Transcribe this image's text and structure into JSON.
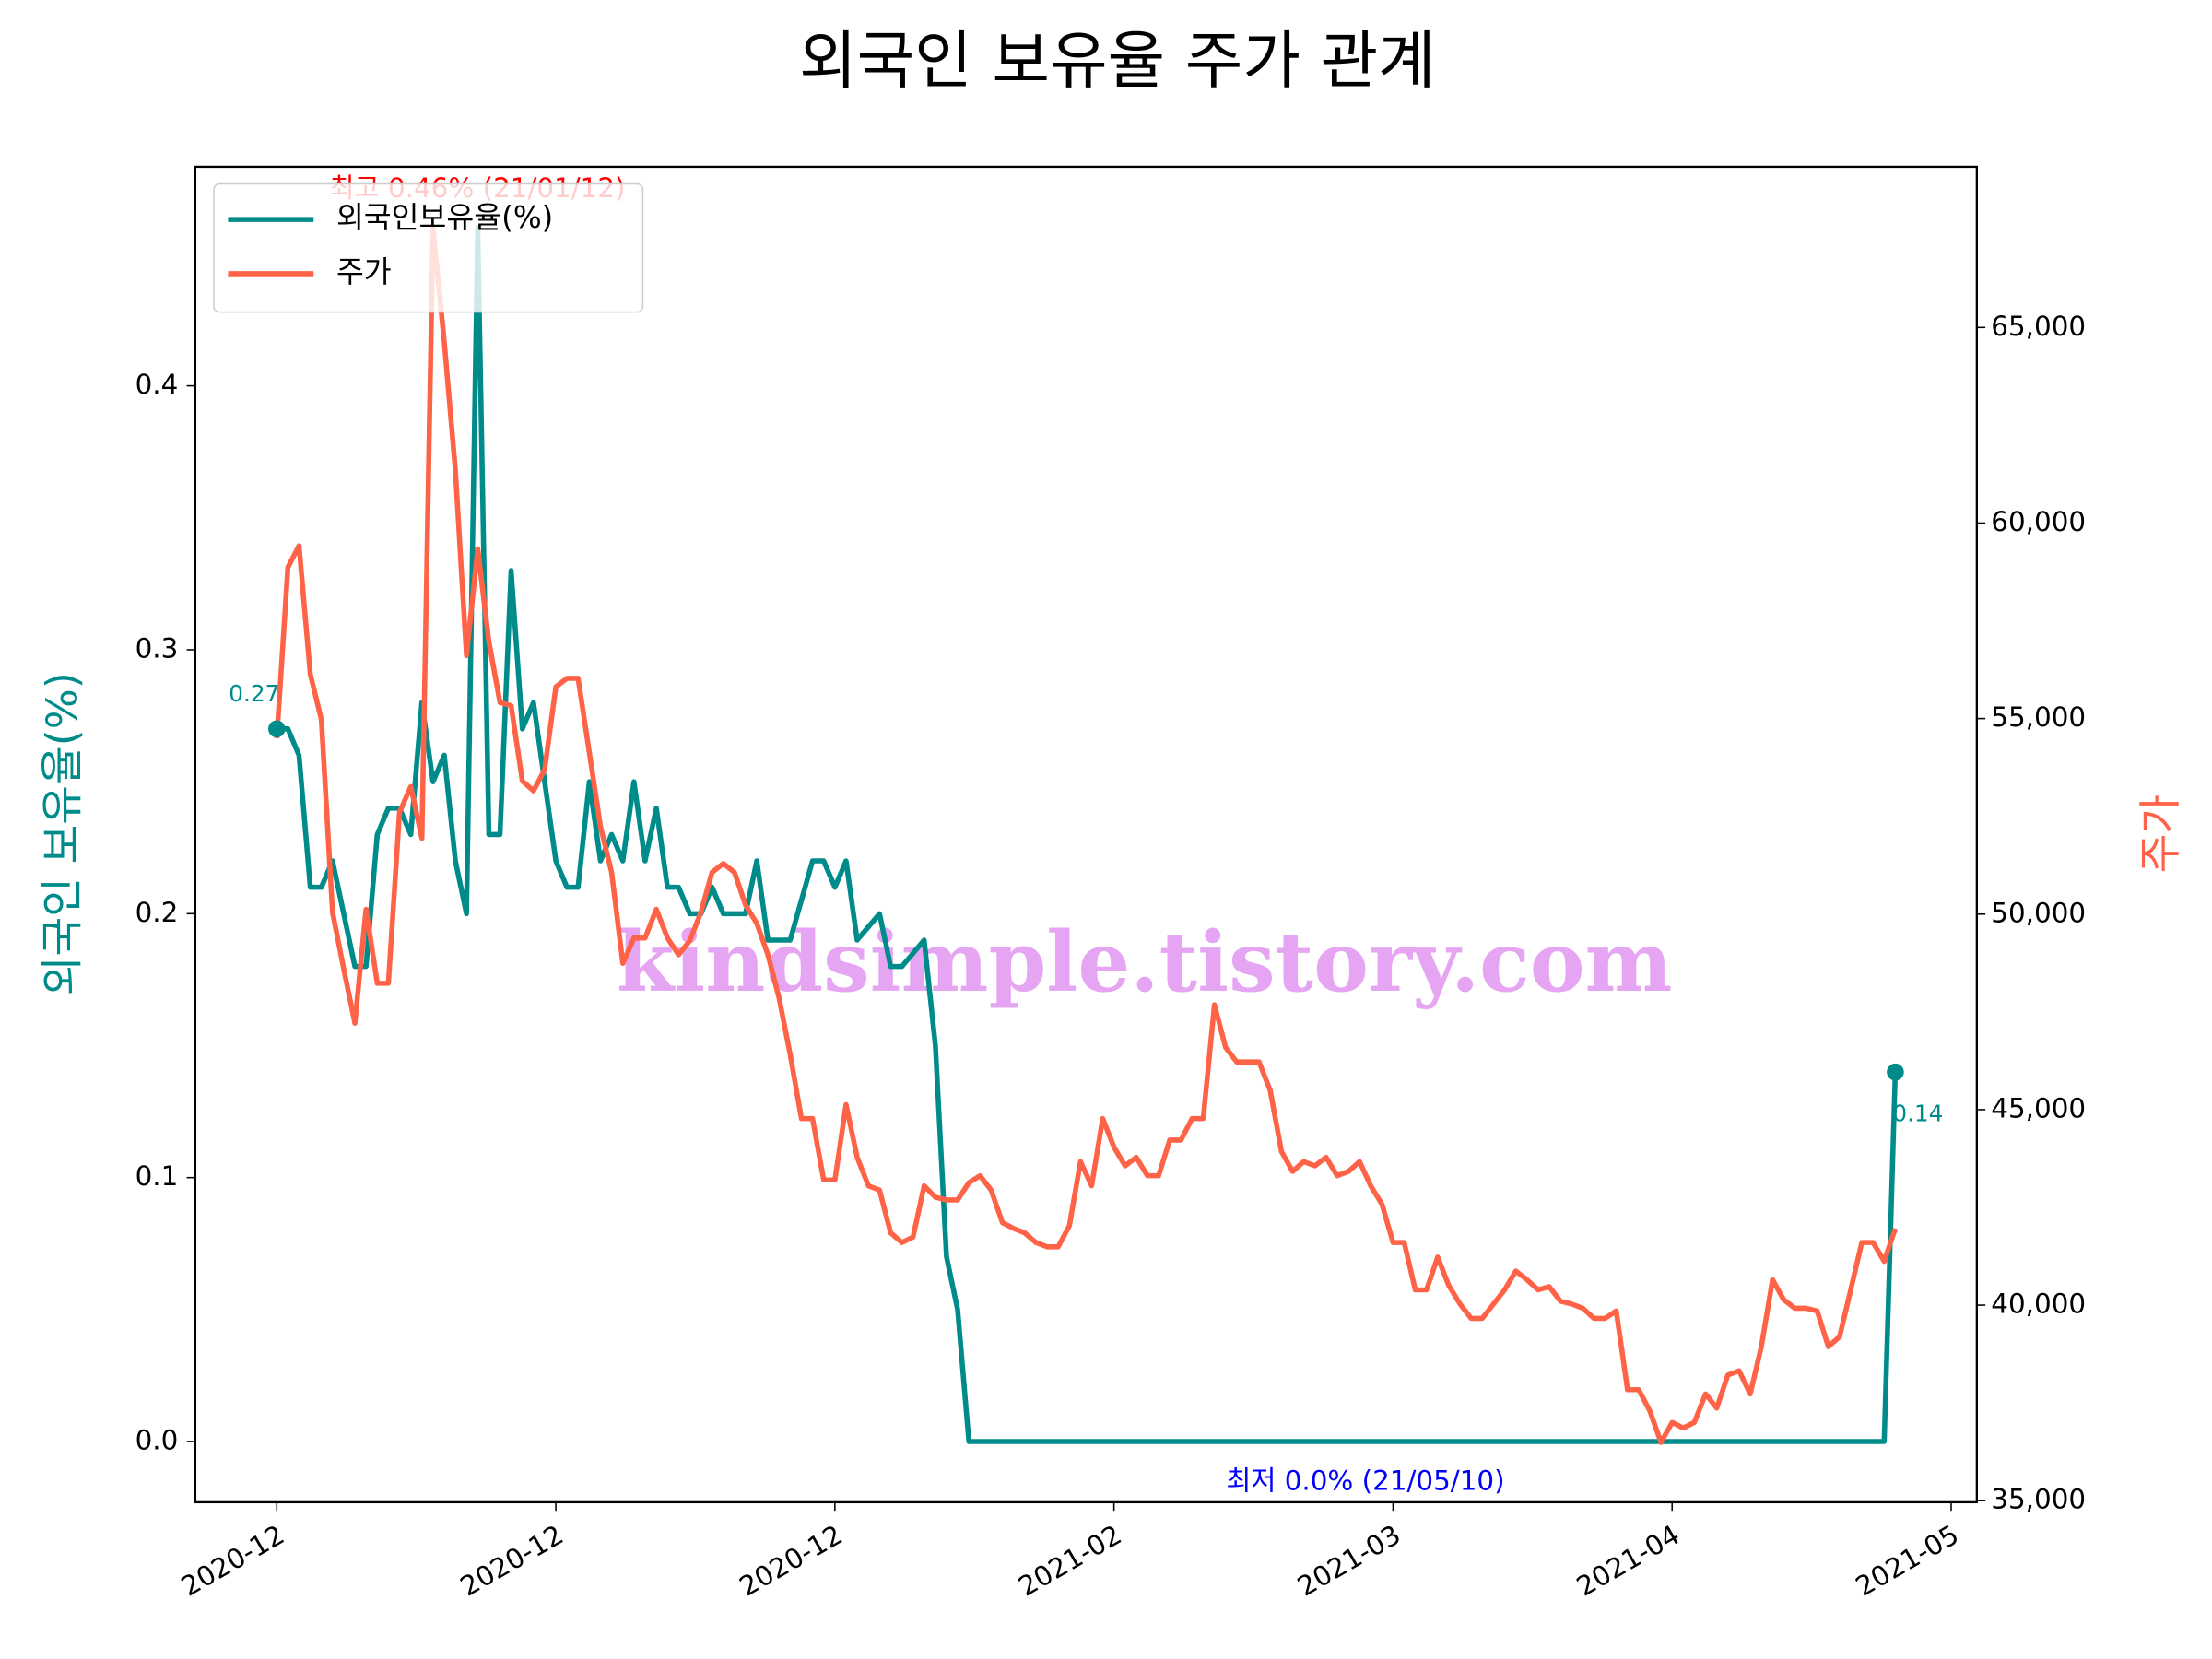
{
  "chart_data": {
    "type": "line",
    "title": "외국인 보유율 주가 관계",
    "y_label": "외국인 보유율(%)",
    "y2_label": "주가",
    "annotations": {
      "high": "최고 0.46% (21/01/12)",
      "low": "최저 0.0% (21/05/10)",
      "watermark": "kindsimple.tistory.com"
    },
    "legend": "upper left",
    "xlim": [
      -7.3,
      152.3
    ],
    "xticks": [
      {
        "value": 0,
        "label": "2020-12"
      },
      {
        "value": 25,
        "label": "2020-12"
      },
      {
        "value": 50,
        "label": "2020-12"
      },
      {
        "value": 75,
        "label": "2021-02"
      },
      {
        "value": 100,
        "label": "2021-03"
      },
      {
        "value": 125,
        "label": "2021-04"
      },
      {
        "value": 150,
        "label": "2021-05"
      }
    ],
    "ylim": [
      -0.023,
      0.483
    ],
    "yticks": [
      {
        "value": 0,
        "label": "0.0"
      },
      0.1,
      0.2,
      0.3,
      0.4
    ],
    "y2lim": [
      34960,
      69110
    ],
    "y2ticks": [
      {
        "value": 35000,
        "label": "35,000"
      },
      {
        "value": 40000,
        "label": "40,000"
      },
      {
        "value": 45000,
        "label": "45,000"
      },
      {
        "value": 50000,
        "label": "50,000"
      },
      {
        "value": 55000,
        "label": "55,000"
      },
      {
        "value": 60000,
        "label": "60,000"
      },
      {
        "value": 65000,
        "label": "65,000"
      }
    ],
    "series": [
      {
        "name": "외국인보유율(%)",
        "color": "#008b8b",
        "x": [
          0,
          1,
          2,
          3,
          4,
          5,
          7,
          8,
          9,
          10,
          11,
          12,
          13,
          14,
          15,
          16,
          17,
          18,
          19,
          20,
          21,
          22,
          23,
          25,
          26,
          27,
          28,
          29,
          30,
          31,
          32,
          33,
          34,
          35,
          36,
          37,
          38,
          39,
          40,
          42,
          43,
          44,
          46,
          48,
          49,
          50,
          51,
          52,
          54,
          55,
          56,
          58,
          59,
          60,
          61,
          62,
          144,
          145
        ],
        "values": [
          0.27,
          0.27,
          0.26,
          0.21,
          0.21,
          0.22,
          0.18,
          0.18,
          0.23,
          0.24,
          0.24,
          0.23,
          0.28,
          0.25,
          0.26,
          0.22,
          0.2,
          0.46,
          0.23,
          0.23,
          0.33,
          0.27,
          0.28,
          0.22,
          0.21,
          0.21,
          0.25,
          0.22,
          0.23,
          0.22,
          0.25,
          0.22,
          0.24,
          0.21,
          0.21,
          0.2,
          0.2,
          0.21,
          0.2,
          0.2,
          0.22,
          0.19,
          0.19,
          0.22,
          0.22,
          0.21,
          0.22,
          0.19,
          0.2,
          0.18,
          0.18,
          0.19,
          0.15,
          0.07,
          0.05,
          0,
          0,
          0.14
        ]
      },
      {
        "name": "주가",
        "color": "#ff6347",
        "axis": "y2",
        "x": [
          0,
          1,
          2,
          3,
          4,
          5,
          6,
          7,
          8,
          9,
          10,
          11,
          12,
          13,
          14,
          15,
          16,
          17,
          18,
          19,
          20,
          21,
          22,
          23,
          24,
          25,
          26,
          27,
          28,
          29,
          30,
          31,
          32,
          33,
          34,
          35,
          36,
          37,
          38,
          39,
          40,
          41,
          42,
          43,
          44,
          45,
          46,
          47,
          48,
          49,
          50,
          51,
          52,
          53,
          54,
          55,
          56,
          57,
          58,
          59,
          60,
          61,
          62,
          63,
          64,
          65,
          66,
          67,
          68,
          69,
          70,
          71,
          72,
          73,
          74,
          75,
          76,
          77,
          78,
          79,
          80,
          81,
          82,
          83,
          84,
          85,
          86,
          87,
          88,
          89,
          90,
          91,
          92,
          93,
          94,
          95,
          96,
          97,
          98,
          99,
          100,
          101,
          102,
          103,
          104,
          105,
          106,
          107,
          108,
          109,
          110,
          111,
          112,
          113,
          114,
          115,
          116,
          117,
          118,
          119,
          120,
          121,
          122,
          123,
          124,
          125,
          126,
          127,
          128,
          129,
          130,
          131,
          132,
          133,
          134,
          135,
          136,
          137,
          138,
          139,
          140,
          141,
          142,
          143,
          144,
          145
        ],
        "values": [
          54500,
          58870,
          59420,
          56140,
          54970,
          50050,
          48590,
          47210,
          50120,
          48230,
          48230,
          52600,
          53260,
          51940,
          67540,
          64630,
          61350,
          56610,
          59340,
          56970,
          55410,
          55330,
          53400,
          53150,
          53690,
          55810,
          56030,
          56030,
          54130,
          52240,
          51070,
          48740,
          49390,
          49390,
          50120,
          49390,
          48960,
          49320,
          50050,
          51070,
          51290,
          51070,
          50230,
          49760,
          48960,
          47860,
          46410,
          44770,
          44770,
          43200,
          43200,
          45130,
          43780,
          43050,
          42940,
          41850,
          41600,
          41740,
          43050,
          42760,
          42690,
          42690,
          43130,
          43310,
          42940,
          42110,
          41960,
          41850,
          41600,
          41490,
          41490,
          42030,
          43670,
          43050,
          44770,
          44040,
          43560,
          43780,
          43310,
          43310,
          44220,
          44220,
          44770,
          44770,
          47680,
          46590,
          46220,
          46220,
          46220,
          45490,
          43930,
          43420,
          43670,
          43560,
          43780,
          43310,
          43420,
          43670,
          43050,
          42580,
          41600,
          41600,
          40390,
          40390,
          41230,
          40500,
          40030,
          39660,
          39660,
          40030,
          40390,
          40870,
          40650,
          40390,
          40470,
          40100,
          40030,
          39920,
          39660,
          39660,
          39850,
          37840,
          37840,
          37300,
          36490,
          37000,
          36860,
          37000,
          37730,
          37370,
          38210,
          38320,
          37730,
          38940,
          40650,
          40140,
          39920,
          39920,
          39850,
          38940,
          39190,
          40390,
          41600,
          41600,
          41120,
          41960
        ]
      }
    ]
  }
}
